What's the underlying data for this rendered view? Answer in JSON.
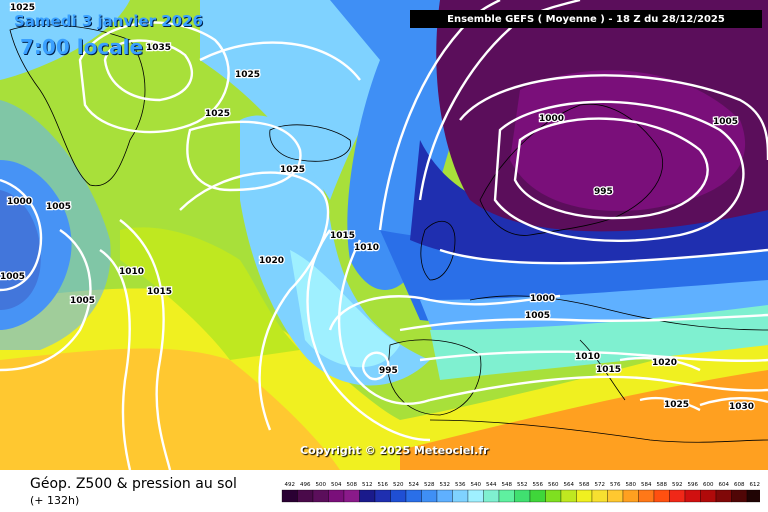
{
  "header": {
    "date_label": "Samedi 3 janvier 2026",
    "time_label": "7:00 locale",
    "run_info": "Ensemble GEFS  ( Moyenne )  -  18 Z du 28/12/2025"
  },
  "map": {
    "copyright": "Copyright © 2025 Meteociel.fr",
    "isobar_labels": [
      {
        "id": "isobar-label-1025-a",
        "text": "1025"
      },
      {
        "id": "isobar-label-1035",
        "text": "1035"
      },
      {
        "id": "isobar-label-1025-b",
        "text": "1025"
      },
      {
        "id": "isobar-label-1025-c",
        "text": "1025"
      },
      {
        "id": "isobar-label-1025-d",
        "text": "1025"
      },
      {
        "id": "isobar-label-1000-west",
        "text": "1000"
      },
      {
        "id": "isobar-label-1005-a",
        "text": "1005"
      },
      {
        "id": "isobar-label-1005-b",
        "text": "1005"
      },
      {
        "id": "isobar-label-1005-c",
        "text": "1005"
      },
      {
        "id": "isobar-label-1010-a",
        "text": "1010"
      },
      {
        "id": "isobar-label-1015-a",
        "text": "1015"
      },
      {
        "id": "isobar-label-1020-a",
        "text": "1020"
      },
      {
        "id": "isobar-label-1015-b",
        "text": "1015"
      },
      {
        "id": "isobar-label-1010-b",
        "text": "1010"
      },
      {
        "id": "isobar-label-995-south",
        "text": "995"
      },
      {
        "id": "isobar-label-1000-north",
        "text": "1000"
      },
      {
        "id": "isobar-label-995-north",
        "text": "995"
      },
      {
        "id": "isobar-label-1005-d",
        "text": "1005"
      },
      {
        "id": "isobar-label-1000-b",
        "text": "1000"
      },
      {
        "id": "isobar-label-1005-e",
        "text": "1005"
      },
      {
        "id": "isobar-label-1010-c",
        "text": "1010"
      },
      {
        "id": "isobar-label-1015-c",
        "text": "1015"
      },
      {
        "id": "isobar-label-1020-b",
        "text": "1020"
      },
      {
        "id": "isobar-label-1025-e",
        "text": "1025"
      },
      {
        "id": "isobar-label-1030",
        "text": "1030"
      }
    ]
  },
  "footer": {
    "title": "Géop. Z500 & pression au sol",
    "lead_time": "(+ 132h)"
  },
  "legend": {
    "values": [
      "492",
      "496",
      "500",
      "504",
      "508",
      "512",
      "516",
      "520",
      "524",
      "528",
      "532",
      "536",
      "540",
      "544",
      "548",
      "552",
      "556",
      "560",
      "564",
      "568",
      "572",
      "576",
      "580",
      "584",
      "588",
      "592",
      "596",
      "600",
      "604",
      "608",
      "612"
    ],
    "colors": [
      "#2a0033",
      "#4a0a4a",
      "#5b0e5b",
      "#7a0f7a",
      "#8a1a8a",
      "#1a1a8c",
      "#1f2fb0",
      "#1f4fd4",
      "#2a6fe8",
      "#3f8ff5",
      "#5fb0ff",
      "#7fd2ff",
      "#9ff0ff",
      "#7ff0d0",
      "#5ff0a0",
      "#40e070",
      "#3fd63a",
      "#7fe020",
      "#bfe820",
      "#f0f020",
      "#f7e030",
      "#ffc830",
      "#ffa020",
      "#ff7818",
      "#ff5010",
      "#f02818",
      "#d01010",
      "#b00a0a",
      "#800808",
      "#500606",
      "#200404"
    ]
  }
}
